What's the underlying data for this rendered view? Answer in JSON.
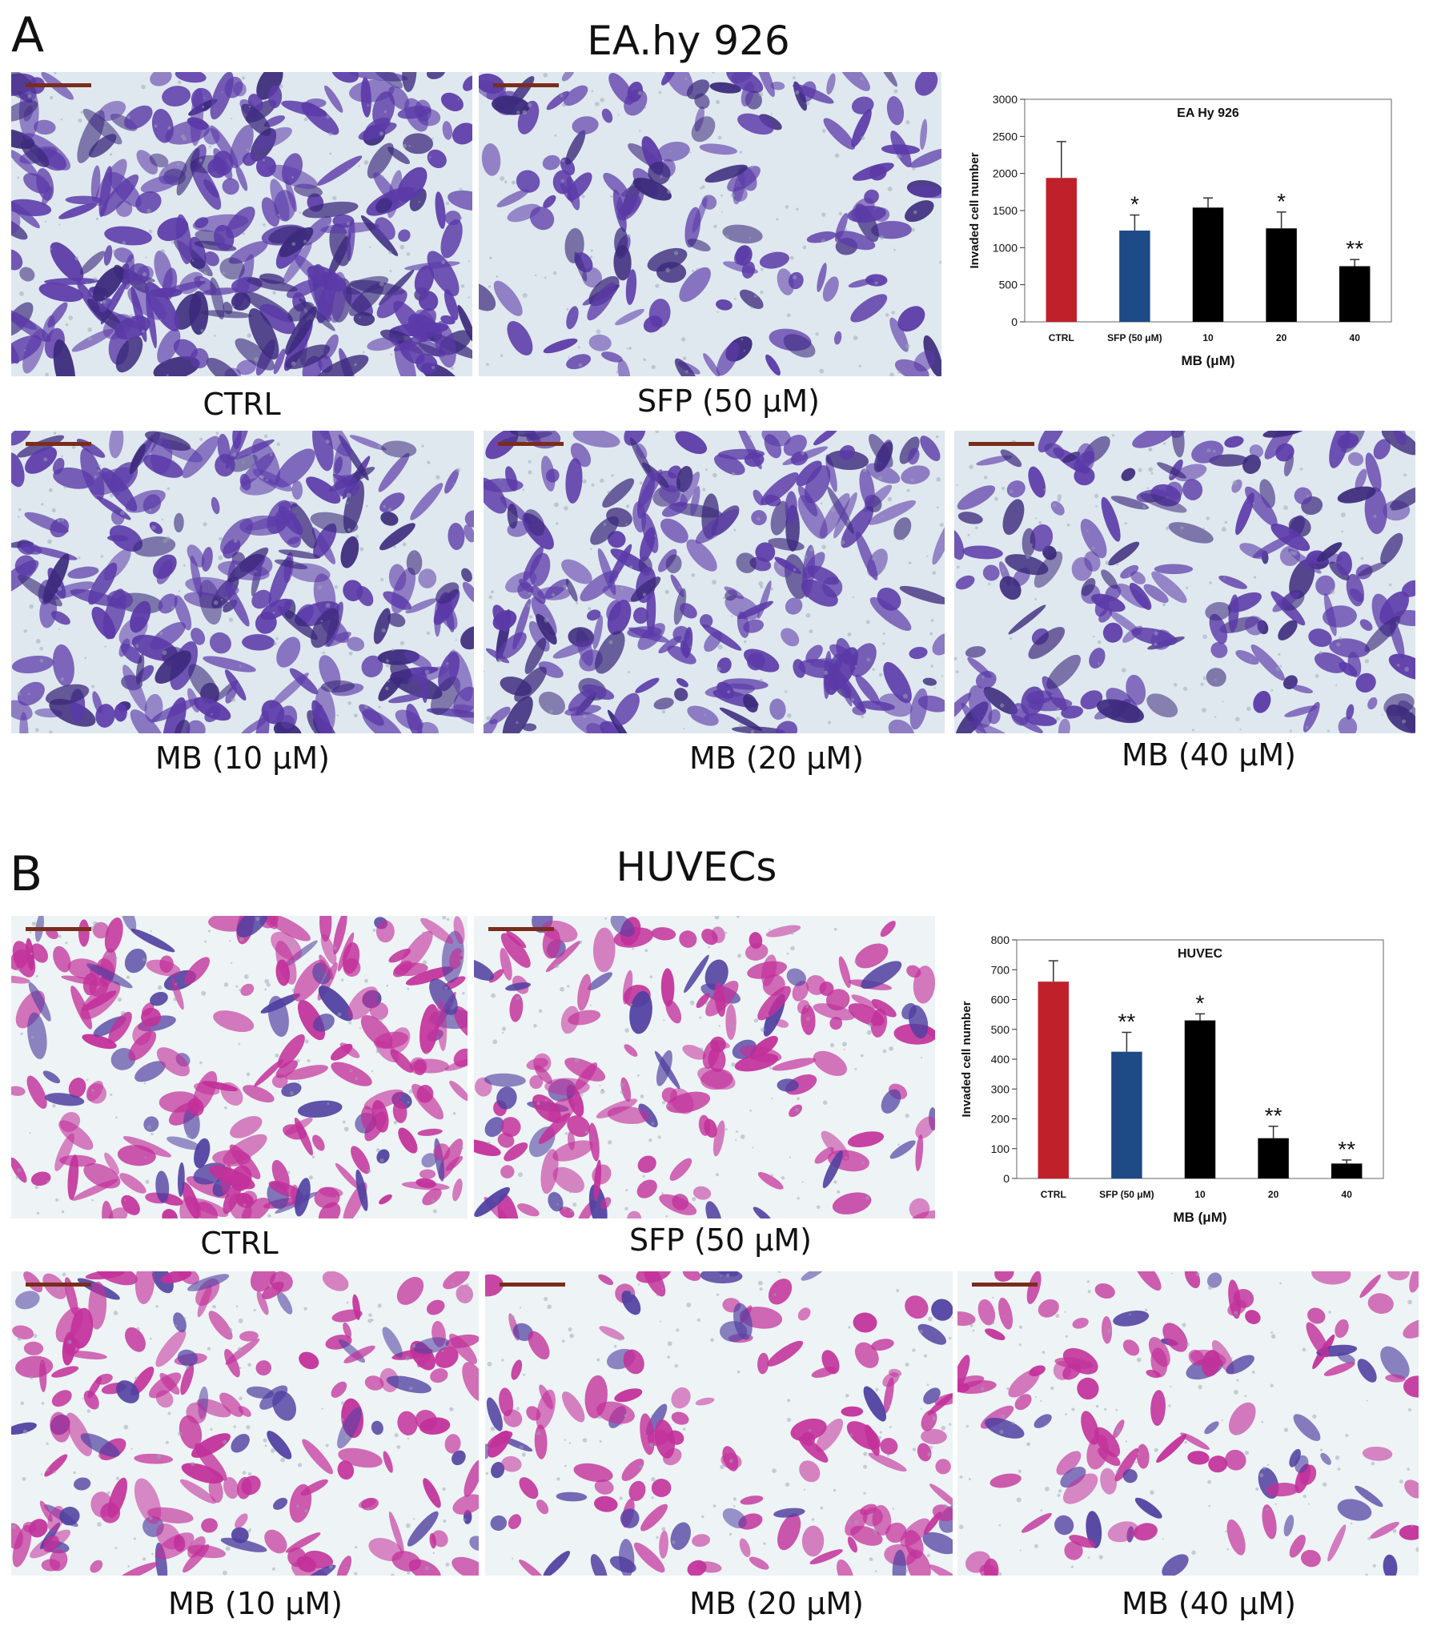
{
  "panels": [
    {
      "letter": "A",
      "title": "EA.hy 926",
      "stain": "purple",
      "captions": [
        "CTRL",
        "SFP (50 μM)",
        "MB (10 μM)",
        "MB (20 μM)",
        "MB (40 μM)"
      ],
      "density": [
        0.85,
        0.35,
        0.7,
        0.65,
        0.5
      ]
    },
    {
      "letter": "B",
      "title": "HUVECs",
      "stain": "magenta",
      "captions": [
        "CTRL",
        "SFP (50 μM)",
        "MB (10 μM)",
        "MB (20 μM)",
        "MB (40 μM)"
      ],
      "density": [
        0.6,
        0.4,
        0.45,
        0.3,
        0.22
      ]
    }
  ],
  "colors": {
    "ctrl": "#c0202a",
    "sfp": "#1e4a85",
    "mb": "#000000",
    "purple": "#5b3aa8",
    "magenta": "#c2309a"
  },
  "chart_data": [
    {
      "type": "bar",
      "title": "EA Hy 926",
      "categories": [
        "CTRL",
        "SFP (50 μM)",
        "10",
        "20",
        "40"
      ],
      "values": [
        1940,
        1230,
        1540,
        1260,
        750
      ],
      "errors": [
        490,
        210,
        130,
        220,
        90
      ],
      "significance": [
        "",
        "*",
        "",
        "*",
        "**"
      ],
      "bar_colors": [
        "#c0202a",
        "#1e4a85",
        "#000000",
        "#000000",
        "#000000"
      ],
      "xlabel": "MB (μM)",
      "ylabel": "Invaded cell number",
      "ylim": [
        0,
        3000
      ],
      "yticks": [
        0,
        500,
        1000,
        1500,
        2000,
        2500,
        3000
      ]
    },
    {
      "type": "bar",
      "title": "HUVEC",
      "categories": [
        "CTRL",
        "SFP (50 μM)",
        "10",
        "20",
        "40"
      ],
      "values": [
        660,
        425,
        530,
        135,
        50
      ],
      "errors": [
        70,
        65,
        22,
        40,
        12
      ],
      "significance": [
        "",
        "**",
        "*",
        "**",
        "**"
      ],
      "bar_colors": [
        "#c0202a",
        "#1e4a85",
        "#000000",
        "#000000",
        "#000000"
      ],
      "xlabel": "MB (μM)",
      "ylabel": "Invaded cell number",
      "ylim": [
        0,
        800
      ],
      "yticks": [
        0,
        100,
        200,
        300,
        400,
        500,
        600,
        700,
        800
      ]
    }
  ]
}
